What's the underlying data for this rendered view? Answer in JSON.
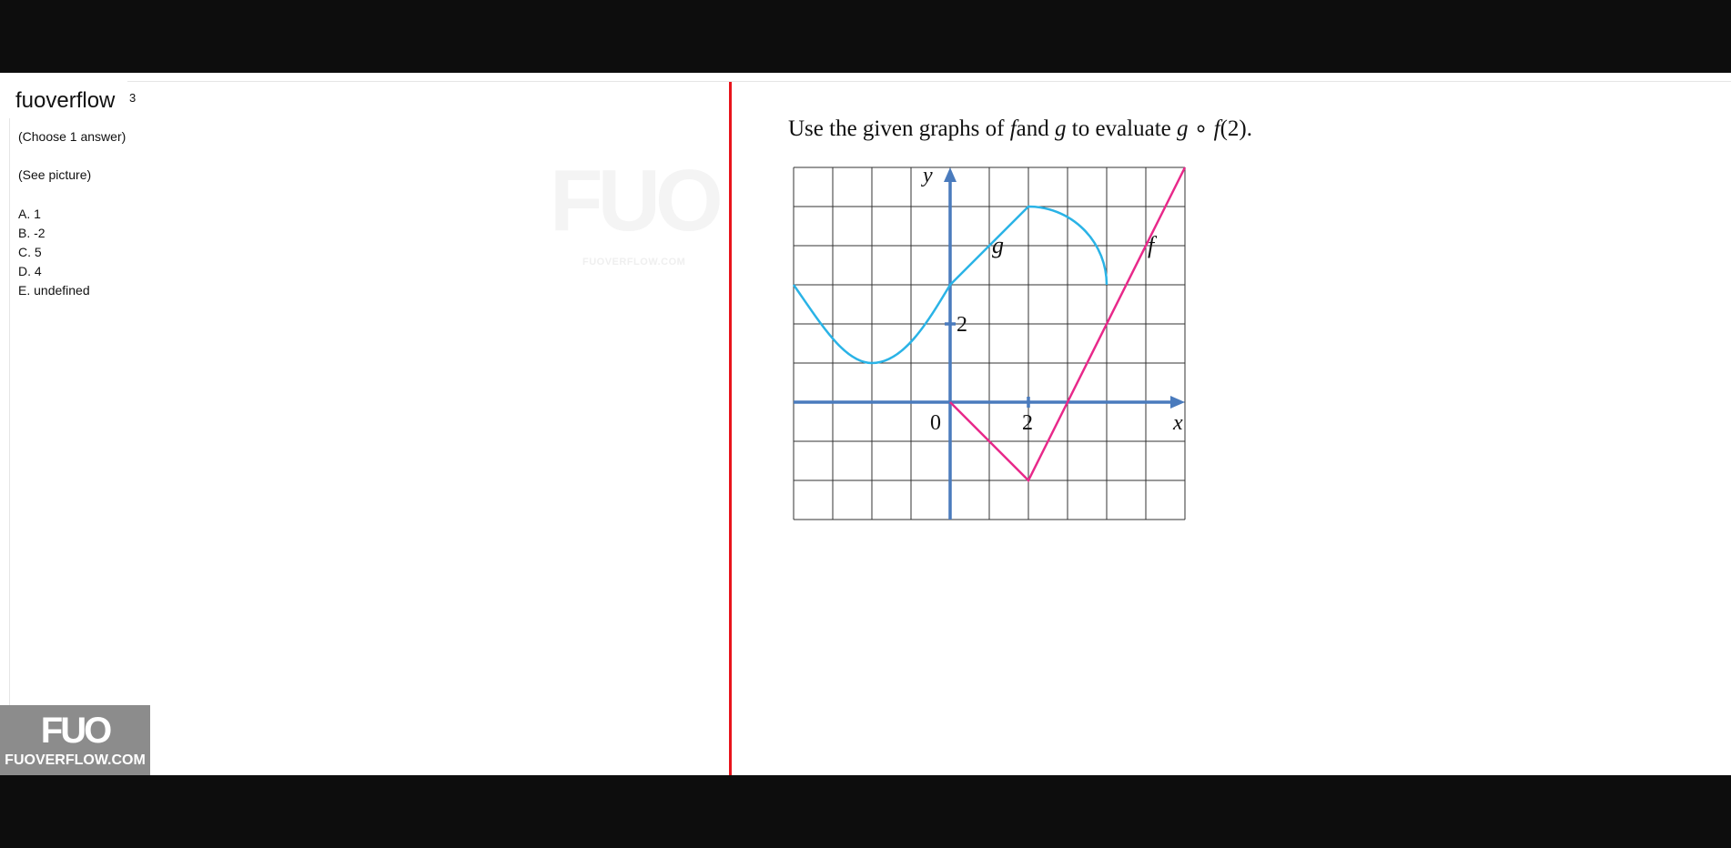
{
  "app": {
    "title": "fuoverflow",
    "badge": "3"
  },
  "question": {
    "instruction": "(Choose 1 answer)",
    "note": "(See picture)",
    "options": [
      "A. 1",
      "B. -2",
      "C. 5",
      "D. 4",
      "E. undefined"
    ],
    "prompt": {
      "part1": "Use the given graphs of ",
      "f1": "f",
      "part2": "and ",
      "g1": "g",
      "part3": " to evaluate ",
      "g2": "g",
      "op": " ∘ ",
      "f2": "f",
      "arg": "(2)",
      "end": "."
    }
  },
  "watermark": {
    "logo": "FUO",
    "text": "FUOVERFLOW.COM"
  },
  "brand": {
    "logo": "FUO",
    "text": "FUOVERFLOW.COM"
  },
  "graph": {
    "x_range": [
      -4,
      6
    ],
    "y_range": [
      -3,
      6
    ],
    "labels": {
      "y": "y",
      "x": "x",
      "origin": "0",
      "x_tick": "2",
      "y_tick": "2",
      "g": "g",
      "f": "f"
    },
    "f_points": [
      [
        0,
        0
      ],
      [
        2,
        -2
      ],
      [
        6,
        6
      ]
    ],
    "g_points": [
      [
        -4,
        3
      ],
      [
        -2,
        1
      ],
      [
        0,
        3
      ],
      [
        2,
        5
      ],
      [
        4,
        3
      ]
    ],
    "colors": {
      "f": "#e8298a",
      "g": "#2ab3e6",
      "axis": "#4a7bbd",
      "grid": "#333333"
    }
  }
}
